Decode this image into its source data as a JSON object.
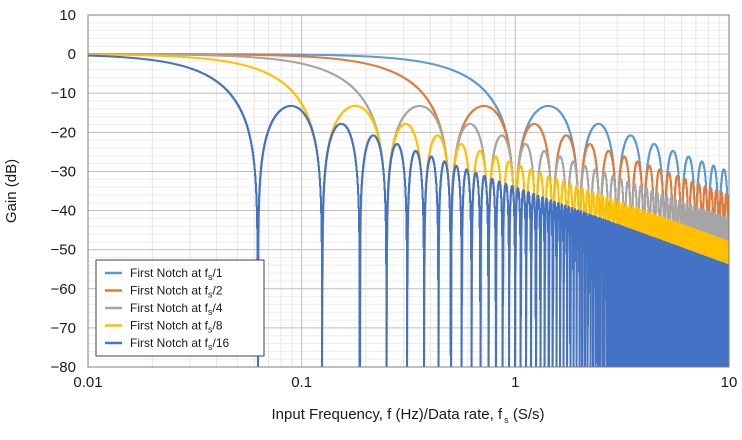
{
  "chart_data": {
    "type": "line",
    "xlabel": {
      "prefix": "Input Frequency, f (Hz)/Data rate, f",
      "sub": "s",
      "suffix": " (S/s)"
    },
    "ylabel": "Gain (dB)",
    "xscale": "log",
    "xlim": [
      0.01,
      10
    ],
    "ylim": [
      -80,
      10
    ],
    "x_ticks": [
      "0.01",
      "0.1",
      "1",
      "10"
    ],
    "y_ticks": [
      "10",
      "0",
      "−10",
      "−20",
      "−30",
      "−40",
      "−50",
      "−60",
      "−70",
      "−80"
    ],
    "grid": true,
    "legend_position": "bottom-left",
    "series": [
      {
        "name": "First Notch at fs/1",
        "label_prefix": "First Notch at f",
        "label_sub": "s",
        "label_suffix": "/1",
        "first_notch": 1,
        "color": "#5b9bd5"
      },
      {
        "name": "First Notch at fs/2",
        "label_prefix": "First Notch at f",
        "label_sub": "s",
        "label_suffix": "/2",
        "first_notch": 0.5,
        "color": "#e07b39"
      },
      {
        "name": "First Notch at fs/4",
        "label_prefix": "First Notch at f",
        "label_sub": "s",
        "label_suffix": "/4",
        "first_notch": 0.25,
        "color": "#a5a5a5"
      },
      {
        "name": "First Notch at fs/8",
        "label_prefix": "First Notch at f",
        "label_sub": "s",
        "label_suffix": "/8",
        "first_notch": 0.125,
        "color": "#ffc000"
      },
      {
        "name": "First Notch at fs/16",
        "label_prefix": "First Notch at f",
        "label_sub": "s",
        "label_suffix": "/16",
        "first_notch": 0.0625,
        "color": "#4472c4"
      }
    ]
  }
}
